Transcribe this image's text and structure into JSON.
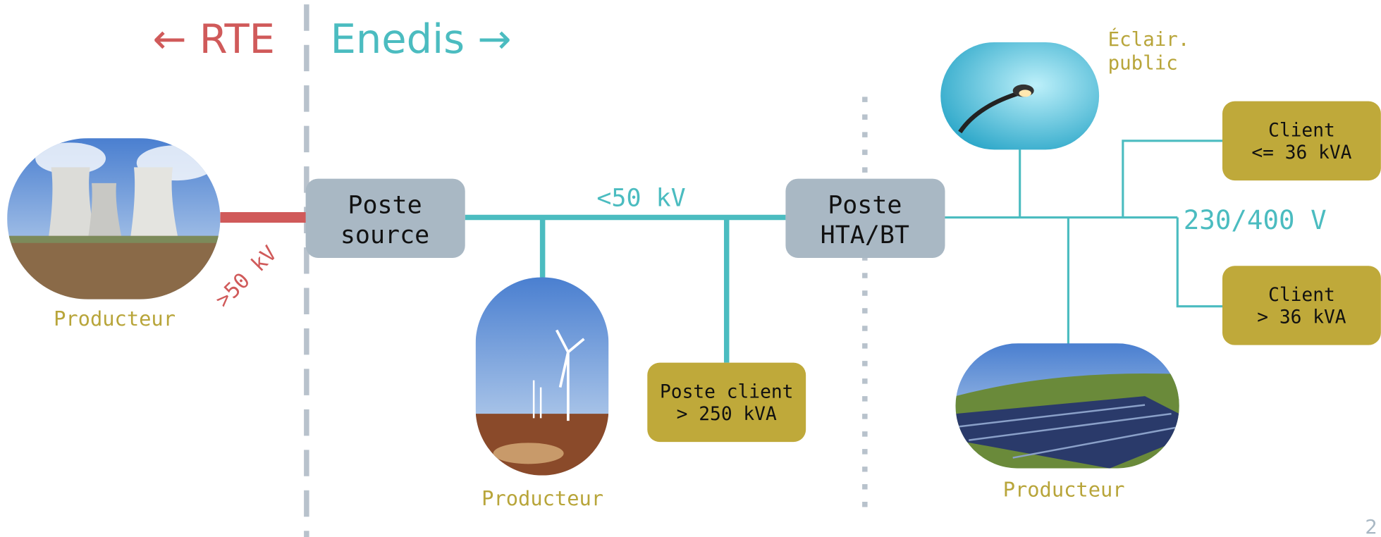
{
  "header": {
    "left": "← RTE",
    "right": "Enedis →"
  },
  "nodes": [
    {
      "label": [
        "Poste",
        "source"
      ]
    },
    {
      "label": [
        "Poste",
        "HTA/BT"
      ]
    },
    {
      "label": [
        "Poste client",
        "> 250 kVA"
      ]
    },
    {
      "label": [
        "Client",
        "<= 36 kVA"
      ]
    },
    {
      "label": [
        "Client",
        "> 36 kVA"
      ]
    }
  ],
  "producers": [
    "Producteur",
    "Producteur",
    "Producteur"
  ],
  "lighting": [
    "Éclair.",
    "public"
  ],
  "voltages": [
    ">50 kV",
    "<50 kV",
    "230/400 V"
  ],
  "page_number": "2"
}
